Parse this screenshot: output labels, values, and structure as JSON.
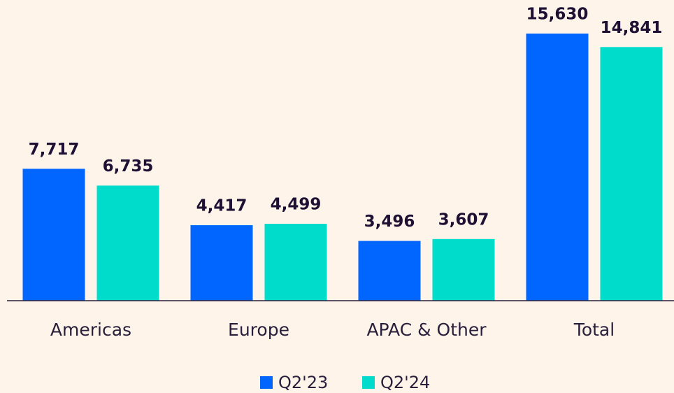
{
  "chart_data": {
    "type": "bar",
    "categories": [
      "Americas",
      "Europe",
      "APAC & Other",
      "Total"
    ],
    "series": [
      {
        "name": "Q2'23",
        "color": "#0066ff",
        "values": [
          7717,
          4417,
          3496,
          15630
        ],
        "value_labels": [
          "7,717",
          "4,417",
          "3,496",
          "15,630"
        ]
      },
      {
        "name": "Q2'24",
        "color": "#00dccc",
        "values": [
          6735,
          4499,
          3607,
          14841
        ],
        "value_labels": [
          "6,735",
          "4,499",
          "3,607",
          "14,841"
        ]
      }
    ],
    "legend": "bottom"
  }
}
